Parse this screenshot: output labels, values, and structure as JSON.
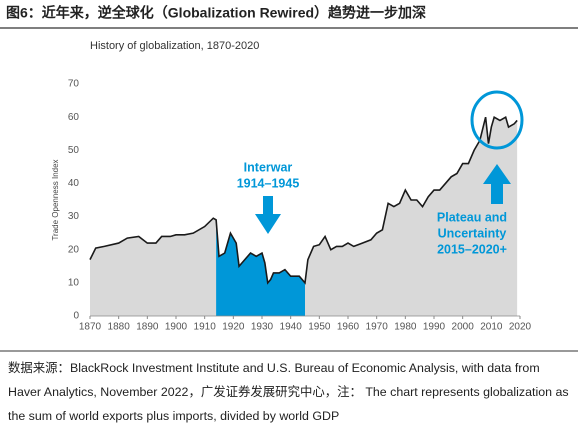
{
  "header": {
    "title": "图6：近年来，逆全球化（Globalization Rewired）趋势进一步加深"
  },
  "chart_data": {
    "type": "area",
    "title": "History of globalization, 1870-2020",
    "y_label": "Trade Openness Index",
    "x": [
      1870,
      1872,
      1875,
      1880,
      1883,
      1887,
      1890,
      1893,
      1895,
      1898,
      1900,
      1903,
      1906,
      1910,
      1913,
      1914,
      1915,
      1917,
      1919,
      1921,
      1922,
      1924,
      1926,
      1928,
      1930,
      1931,
      1932,
      1933,
      1934,
      1936,
      1938,
      1940,
      1943,
      1945,
      1946,
      1948,
      1950,
      1952,
      1954,
      1956,
      1958,
      1960,
      1962,
      1965,
      1968,
      1970,
      1972,
      1974,
      1976,
      1978,
      1980,
      1982,
      1984,
      1986,
      1988,
      1990,
      1992,
      1994,
      1996,
      1998,
      2000,
      2002,
      2004,
      2006,
      2008,
      2009,
      2010,
      2011,
      2013,
      2015,
      2016,
      2018,
      2019
    ],
    "series": [
      {
        "name": "Trade Openness Index",
        "color": "#1a1a1a",
        "fill": "#d9d9d9",
        "values": [
          17,
          20.5,
          21,
          22,
          23.5,
          24,
          22,
          22,
          24,
          24,
          24.5,
          24.5,
          25,
          27,
          29.5,
          29,
          18,
          19,
          25,
          22,
          15,
          17,
          19,
          18,
          19,
          16,
          10,
          11,
          13,
          13,
          14,
          12,
          12,
          10,
          17,
          21,
          21.5,
          24,
          20,
          21,
          21,
          22,
          21,
          22,
          23,
          25,
          26,
          34,
          33,
          34,
          38,
          35,
          35,
          33,
          36,
          38,
          38,
          40,
          42,
          43,
          46,
          46,
          50,
          53,
          60,
          52,
          57,
          60,
          59,
          60,
          57,
          58,
          59
        ]
      }
    ],
    "highlight": {
      "xlim": [
        1914,
        1945
      ],
      "color": "#0097d8"
    },
    "xlim": [
      1870,
      2020
    ],
    "xticks": [
      1870,
      1880,
      1890,
      1900,
      1910,
      1920,
      1930,
      1940,
      1950,
      1960,
      1970,
      1980,
      1990,
      2000,
      2010,
      2020
    ],
    "ylim": [
      0,
      70
    ],
    "yticks": [
      0,
      10,
      20,
      30,
      40,
      50,
      60,
      70
    ],
    "annotations": [
      {
        "lines": [
          "Interwar",
          "1914–1945"
        ],
        "color": "#0097d8"
      },
      {
        "lines": [
          "Plateau and",
          "Uncertainty",
          "2015–2020+"
        ],
        "color": "#0097d8"
      }
    ]
  },
  "footer": {
    "text": "数据来源：BlackRock Investment Institute and U.S. Bureau of Economic Analysis, with data from Haver Analytics, November 2022，广发证券发展研究中心，注： The chart represents globalization as the sum of world exports plus imports, divided by world GDP"
  }
}
